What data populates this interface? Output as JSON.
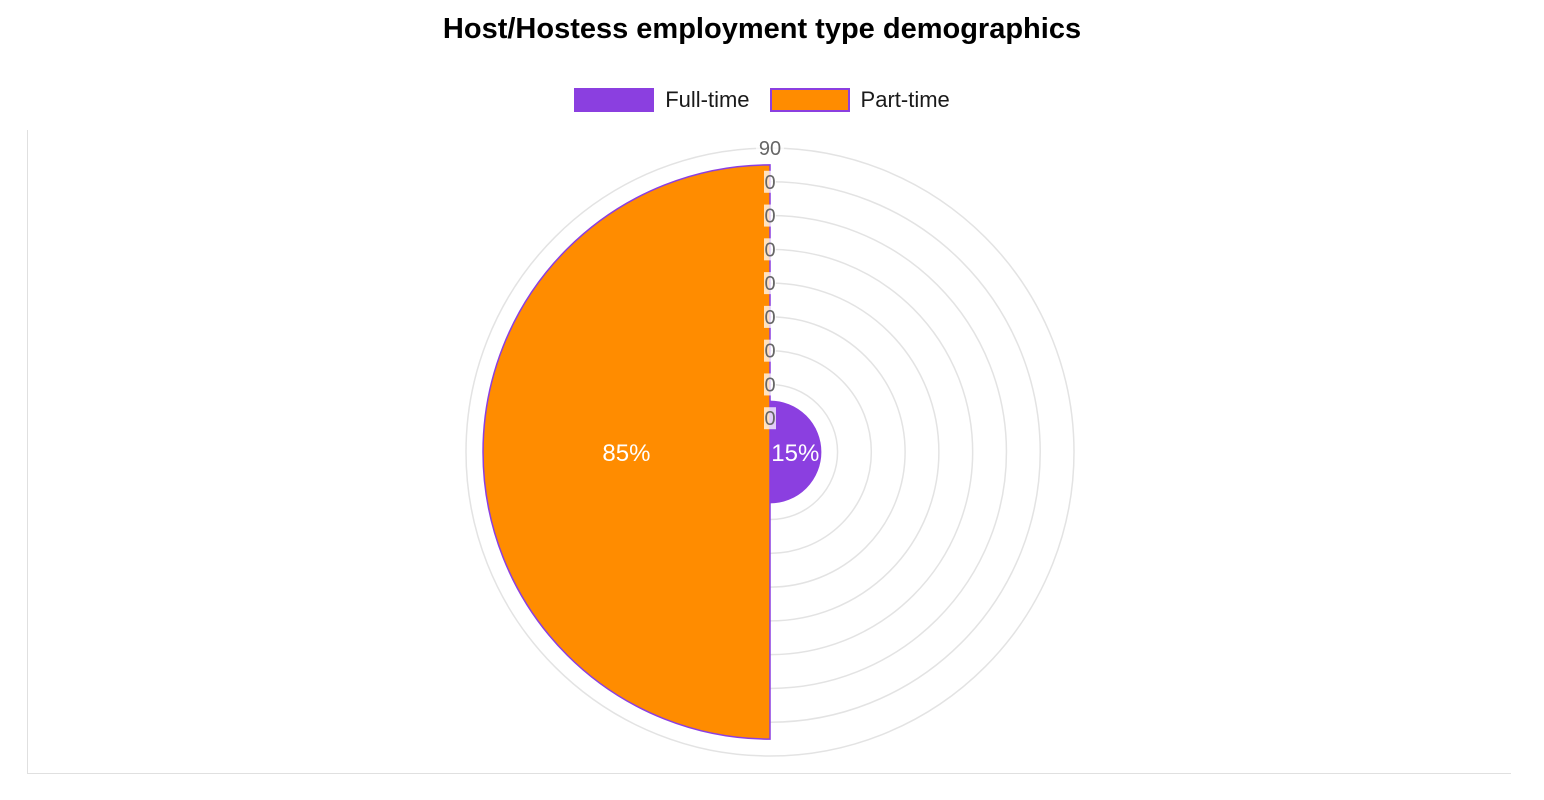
{
  "chart_data": {
    "type": "polarArea",
    "title": "Host/Hostess employment type demographics",
    "labels": [
      "Full-time",
      "Part-time"
    ],
    "values": [
      15,
      85
    ],
    "value_labels": [
      "15%",
      "85%"
    ],
    "colors": [
      "#8b3fe0",
      "#ff8c00"
    ],
    "border_color": "#8b3fe0",
    "r_axis": {
      "min": 0,
      "max": 90,
      "step": 10,
      "tick_labels": [
        "0",
        "0",
        "0",
        "0",
        "0",
        "0",
        "0",
        "0",
        "90"
      ]
    },
    "legend_position": "top",
    "grid": true
  }
}
